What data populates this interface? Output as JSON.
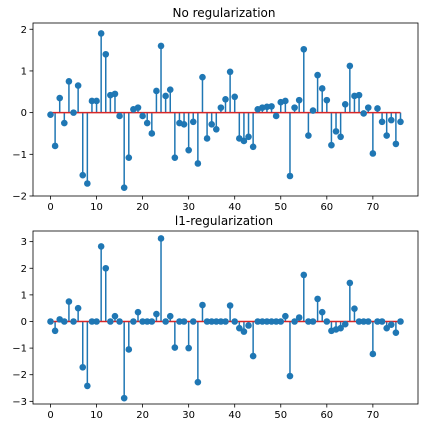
{
  "chart_data": [
    {
      "type": "stem",
      "title": "No regularization",
      "xlim": [
        -3.8,
        79.8
      ],
      "ylim": [
        -2,
        2.15
      ],
      "xticks": [
        0,
        10,
        20,
        30,
        40,
        50,
        60,
        70
      ],
      "yticks": [
        -2,
        -1,
        0,
        1,
        2
      ],
      "baseline": 0,
      "stem_color": "#1f77b4",
      "baseline_color": "#d62728",
      "x": [
        0,
        1,
        2,
        3,
        4,
        5,
        6,
        7,
        8,
        9,
        10,
        11,
        12,
        13,
        14,
        15,
        16,
        17,
        18,
        19,
        20,
        21,
        22,
        23,
        24,
        25,
        26,
        27,
        28,
        29,
        30,
        31,
        32,
        33,
        34,
        35,
        36,
        37,
        38,
        39,
        40,
        41,
        42,
        43,
        44,
        45,
        46,
        47,
        48,
        49,
        50,
        51,
        52,
        53,
        54,
        55,
        56,
        57,
        58,
        59,
        60,
        61,
        62,
        63,
        64,
        65,
        66,
        67,
        68,
        69,
        70,
        71,
        72,
        73,
        74,
        75,
        76
      ],
      "values": [
        -0.05,
        -0.8,
        0.35,
        -0.25,
        0.75,
        0.0,
        0.65,
        -1.5,
        -1.7,
        0.28,
        0.28,
        1.9,
        1.4,
        0.42,
        0.45,
        -0.08,
        -1.8,
        -1.08,
        0.08,
        0.12,
        -0.08,
        -0.25,
        -0.5,
        0.52,
        1.6,
        0.4,
        0.55,
        -1.08,
        -0.25,
        -0.28,
        -0.9,
        -0.22,
        -1.22,
        0.85,
        -0.62,
        -0.28,
        -0.4,
        0.12,
        0.32,
        0.98,
        0.38,
        -0.62,
        -0.68,
        -0.58,
        -0.82,
        0.08,
        0.12,
        0.14,
        0.15,
        -0.08,
        0.25,
        0.28,
        -1.52,
        0.12,
        0.3,
        1.52,
        -0.55,
        0.05,
        0.9,
        0.58,
        0.3,
        -0.78,
        -0.45,
        -0.58,
        0.2,
        1.12,
        0.4,
        0.42,
        -0.02,
        0.12,
        -0.98,
        0.1,
        -0.22,
        -0.55,
        -0.18,
        -0.75,
        -0.22
      ]
    },
    {
      "type": "stem",
      "title": "l1-regularization",
      "xlim": [
        -3.8,
        79.8
      ],
      "ylim": [
        -3.1,
        3.4
      ],
      "xticks": [
        0,
        10,
        20,
        30,
        40,
        50,
        60,
        70
      ],
      "yticks": [
        -3,
        -2,
        -1,
        0,
        1,
        2,
        3
      ],
      "baseline": 0,
      "stem_color": "#1f77b4",
      "baseline_color": "#d62728",
      "x": [
        0,
        1,
        2,
        3,
        4,
        5,
        6,
        7,
        8,
        9,
        10,
        11,
        12,
        13,
        14,
        15,
        16,
        17,
        18,
        19,
        20,
        21,
        22,
        23,
        24,
        25,
        26,
        27,
        28,
        29,
        30,
        31,
        32,
        33,
        34,
        35,
        36,
        37,
        38,
        39,
        40,
        41,
        42,
        43,
        44,
        45,
        46,
        47,
        48,
        49,
        50,
        51,
        52,
        53,
        54,
        55,
        56,
        57,
        58,
        59,
        60,
        61,
        62,
        63,
        64,
        65,
        66,
        67,
        68,
        69,
        70,
        71,
        72,
        73,
        74,
        75,
        76
      ],
      "values": [
        0.0,
        -0.35,
        0.08,
        0.0,
        0.75,
        0.0,
        0.5,
        -1.72,
        -2.42,
        0.0,
        0.0,
        2.82,
        2.0,
        0.0,
        0.2,
        0.0,
        -2.88,
        -1.05,
        0.0,
        0.35,
        0.0,
        0.0,
        0.0,
        0.28,
        3.12,
        0.0,
        0.2,
        -0.98,
        0.0,
        0.0,
        -1.0,
        0.0,
        -2.28,
        0.62,
        0.0,
        0.0,
        0.0,
        0.0,
        0.0,
        0.6,
        0.0,
        -0.25,
        -0.38,
        -0.15,
        -1.3,
        0.0,
        0.0,
        0.0,
        0.0,
        0.0,
        0.0,
        0.2,
        -2.05,
        0.0,
        0.15,
        1.75,
        0.0,
        0.0,
        0.85,
        0.35,
        0.0,
        -0.35,
        -0.3,
        -0.25,
        -0.1,
        1.45,
        0.48,
        0.0,
        0.0,
        0.0,
        -1.22,
        0.0,
        0.0,
        -0.25,
        -0.12,
        -0.42,
        0.0
      ]
    }
  ]
}
